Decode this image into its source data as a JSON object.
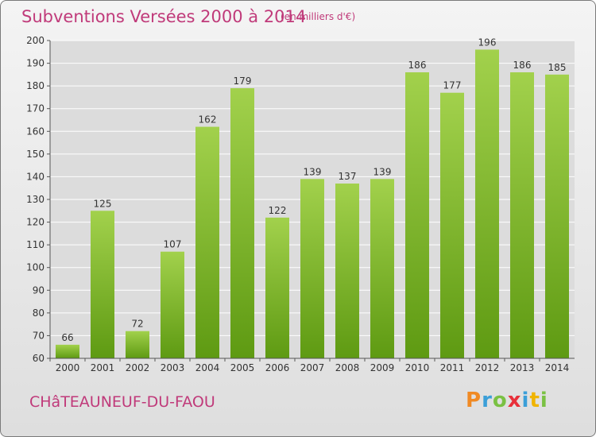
{
  "header": {
    "title": "Subventions Versées 2000 à 2014",
    "subtitle": "(en milliers d'€)"
  },
  "footer": {
    "commune": "CHâTEAUNEUF-DU-FAOU",
    "logo_letters": [
      "P",
      "r",
      "o",
      "x",
      "i",
      "t",
      "i"
    ],
    "logo_colors": [
      "#f08a24",
      "#3b9fd8",
      "#7ac143",
      "#e8303a",
      "#3b9fd8",
      "#f0b400",
      "#7ac143"
    ]
  },
  "chart_data": {
    "type": "bar",
    "categories": [
      "2000",
      "2001",
      "2002",
      "2003",
      "2004",
      "2005",
      "2006",
      "2007",
      "2008",
      "2009",
      "2010",
      "2011",
      "2012",
      "2013",
      "2014"
    ],
    "values": [
      66,
      125,
      72,
      107,
      162,
      179,
      122,
      139,
      137,
      139,
      186,
      177,
      196,
      186,
      185
    ],
    "title": "Subventions Versées 2000 à 2014",
    "xlabel": "",
    "ylabel": "",
    "ylim": [
      60,
      200
    ],
    "yticks": [
      60,
      70,
      80,
      90,
      100,
      110,
      120,
      130,
      140,
      150,
      160,
      170,
      180,
      190,
      200
    ],
    "grid": true,
    "bar_color_top": "#a2d14c",
    "bar_color_bottom": "#5e9a12"
  }
}
